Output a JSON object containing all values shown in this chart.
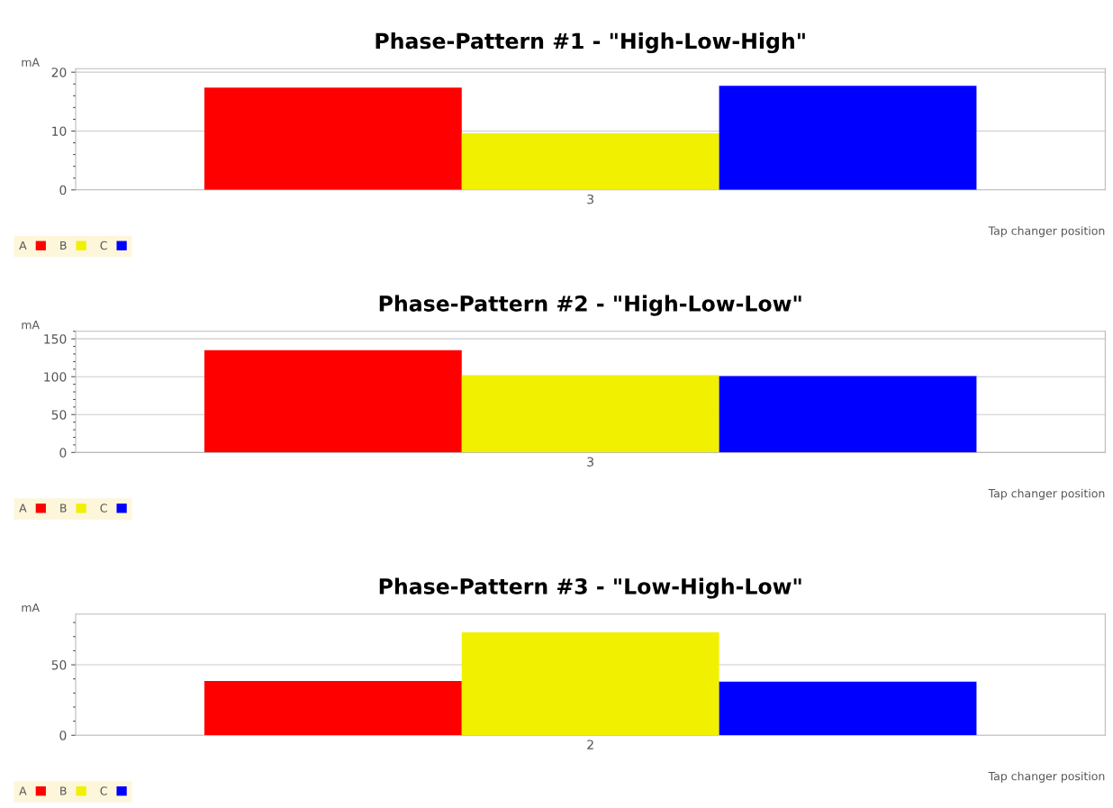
{
  "chart_data": [
    {
      "type": "bar",
      "title": "Phase-Pattern #1 - \"High-Low-High\"",
      "ylabel": "mA",
      "xlabel": "Tap changer position",
      "categories": [
        "3"
      ],
      "series": [
        {
          "name": "A",
          "color": "#ff0000",
          "values": [
            17.4
          ]
        },
        {
          "name": "B",
          "color": "#f0f000",
          "values": [
            9.6
          ]
        },
        {
          "name": "C",
          "color": "#0000ff",
          "values": [
            17.7
          ]
        }
      ],
      "ylim": [
        0,
        20.6
      ],
      "yticks": [
        0,
        10,
        20
      ],
      "grid": "y",
      "legend": "bottom"
    },
    {
      "type": "bar",
      "title": "Phase-Pattern #2 - \"High-Low-Low\"",
      "ylabel": "mA",
      "xlabel": "Tap changer position",
      "categories": [
        "3"
      ],
      "series": [
        {
          "name": "A",
          "color": "#ff0000",
          "values": [
            135
          ]
        },
        {
          "name": "B",
          "color": "#f0f000",
          "values": [
            102
          ]
        },
        {
          "name": "C",
          "color": "#0000ff",
          "values": [
            101
          ]
        }
      ],
      "ylim": [
        0,
        160
      ],
      "yticks": [
        0,
        50,
        100,
        150
      ],
      "grid": "y",
      "legend": "bottom"
    },
    {
      "type": "bar",
      "title": "Phase-Pattern #3 - \"Low-High-Low\"",
      "ylabel": "mA",
      "xlabel": "Tap changer position",
      "categories": [
        "2"
      ],
      "series": [
        {
          "name": "A",
          "color": "#ff0000",
          "values": [
            38.5
          ]
        },
        {
          "name": "B",
          "color": "#f0f000",
          "values": [
            73
          ]
        },
        {
          "name": "C",
          "color": "#0000ff",
          "values": [
            38
          ]
        }
      ],
      "ylim": [
        0,
        86
      ],
      "yticks": [
        0,
        50
      ],
      "grid": "y",
      "legend": "bottom"
    }
  ]
}
